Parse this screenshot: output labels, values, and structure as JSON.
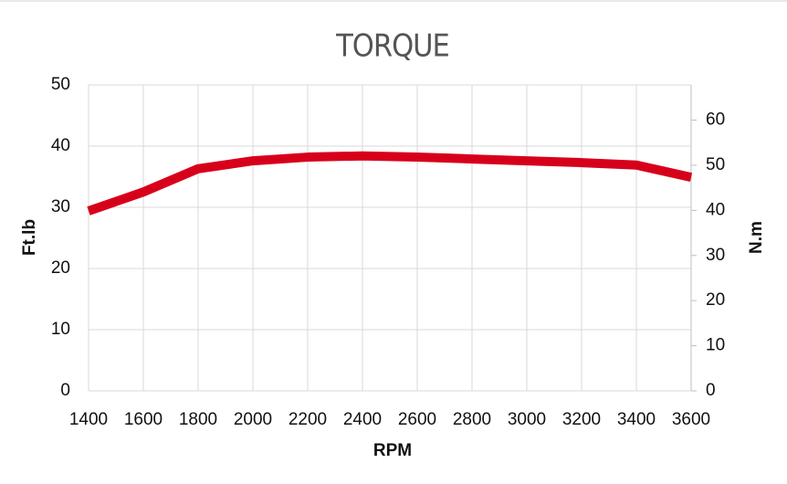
{
  "chart_data": {
    "type": "line",
    "title": "TORQUE",
    "x_label": "RPM",
    "y_label": "Ft.lb",
    "y2_label": "N.m",
    "x": [
      1400,
      1600,
      1800,
      2000,
      2200,
      2400,
      2600,
      2800,
      3000,
      3200,
      3400,
      3600
    ],
    "values": [
      29.4,
      32.5,
      36.3,
      37.6,
      38.2,
      38.4,
      38.2,
      37.9,
      37.6,
      37.3,
      36.9,
      34.9
    ],
    "color": "#d7001b",
    "xlim": [
      1400,
      3600
    ],
    "xticks": [
      1400,
      1600,
      1800,
      2000,
      2200,
      2400,
      2600,
      2800,
      3000,
      3200,
      3400,
      3600
    ],
    "ylim": [
      0,
      50
    ],
    "yticks": [
      0,
      10,
      20,
      30,
      40,
      50
    ],
    "y2lim": [
      0,
      67.8
    ],
    "y2ticks": [
      0,
      10,
      20,
      30,
      40,
      50,
      60
    ],
    "grid": true
  }
}
